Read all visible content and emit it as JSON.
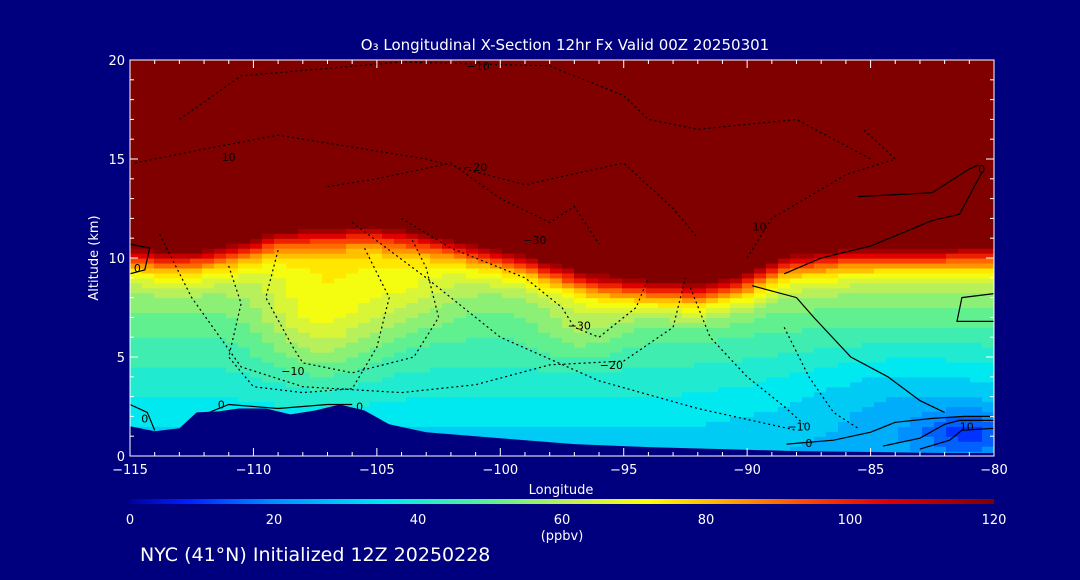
{
  "chart_data": {
    "type": "heatmap",
    "title": "O₃ Longitudinal X-Section 12hr  Fx Valid 00Z 20250301",
    "xlabel": "Longitude",
    "ylabel": "Altitude (km)",
    "xlim": [
      -115,
      -80
    ],
    "ylim": [
      0,
      20
    ],
    "x_ticks": [
      -115,
      -110,
      -105,
      -100,
      -95,
      -90,
      -85,
      -80
    ],
    "x_tick_labels": [
      "−115",
      "−110",
      "−105",
      "−100",
      "−95",
      "−90",
      "−85",
      "−80"
    ],
    "y_ticks": [
      0,
      5,
      10,
      15,
      20
    ],
    "y_tick_labels": [
      "0",
      "5",
      "10",
      "15",
      "20"
    ],
    "colorbar": {
      "label": "(ppbv)",
      "range": [
        0,
        120
      ],
      "ticks": [
        0,
        20,
        40,
        60,
        80,
        100,
        120
      ],
      "tick_labels": [
        "0",
        "20",
        "40",
        "60",
        "80",
        "100",
        "120"
      ],
      "stops": [
        {
          "v": 0,
          "c": "#0000a0"
        },
        {
          "v": 8,
          "c": "#0020ff"
        },
        {
          "v": 20,
          "c": "#0090ff"
        },
        {
          "v": 35,
          "c": "#00e8f0"
        },
        {
          "v": 50,
          "c": "#60f090"
        },
        {
          "v": 62,
          "c": "#c8f050"
        },
        {
          "v": 72,
          "c": "#ffff00"
        },
        {
          "v": 82,
          "c": "#ffb000"
        },
        {
          "v": 93,
          "c": "#ff5000"
        },
        {
          "v": 105,
          "c": "#e00000"
        },
        {
          "v": 120,
          "c": "#800000"
        }
      ]
    },
    "terrain": [
      [
        -115,
        1.5
      ],
      [
        -114,
        1.25
      ],
      [
        -113,
        1.4
      ],
      [
        -112.3,
        2.2
      ],
      [
        -111.4,
        2.25
      ],
      [
        -110.6,
        2.4
      ],
      [
        -109.5,
        2.4
      ],
      [
        -108.5,
        2.1
      ],
      [
        -107.5,
        2.3
      ],
      [
        -106.5,
        2.6
      ],
      [
        -105.5,
        2.3
      ],
      [
        -104.5,
        1.6
      ],
      [
        -103,
        1.2
      ],
      [
        -100,
        0.9
      ],
      [
        -97,
        0.6
      ],
      [
        -94,
        0.45
      ],
      [
        -91,
        0.35
      ],
      [
        -88,
        0.25
      ],
      [
        -85,
        0.2
      ],
      [
        -82,
        0.15
      ],
      [
        -80,
        0.15
      ]
    ],
    "contour_labels": [
      {
        "text": "−10",
        "lon": -100.9,
        "alt": 19.7
      },
      {
        "text": "10",
        "lon": -111.0,
        "alt": 15.1
      },
      {
        "text": "−20",
        "lon": -101.0,
        "alt": 14.6
      },
      {
        "text": "−30",
        "lon": -96.8,
        "alt": 6.6
      },
      {
        "text": "−30",
        "lon": -98.6,
        "alt": 10.9
      },
      {
        "text": "−10",
        "lon": -108.4,
        "alt": 4.3
      },
      {
        "text": "−20",
        "lon": -95.5,
        "alt": 4.6
      },
      {
        "text": "10",
        "lon": -89.5,
        "alt": 11.6
      },
      {
        "text": "−10",
        "lon": -87.9,
        "alt": 1.5
      },
      {
        "text": "0",
        "lon": -87.5,
        "alt": 0.65
      },
      {
        "text": "0",
        "lon": -114.7,
        "alt": 9.5
      },
      {
        "text": "0",
        "lon": -111.3,
        "alt": 2.6
      },
      {
        "text": "0",
        "lon": -105.7,
        "alt": 2.5
      },
      {
        "text": "0",
        "lon": -114.4,
        "alt": 1.9
      },
      {
        "text": "10",
        "lon": -81.1,
        "alt": 1.5
      },
      {
        "text": "0",
        "lon": -80.5,
        "alt": 14.5
      }
    ]
  },
  "caption": "NYC (41°N) Initialized 12Z 20250228",
  "colors": {
    "background": "#00007f",
    "axis": "#ffffff",
    "contour": "#000000"
  }
}
